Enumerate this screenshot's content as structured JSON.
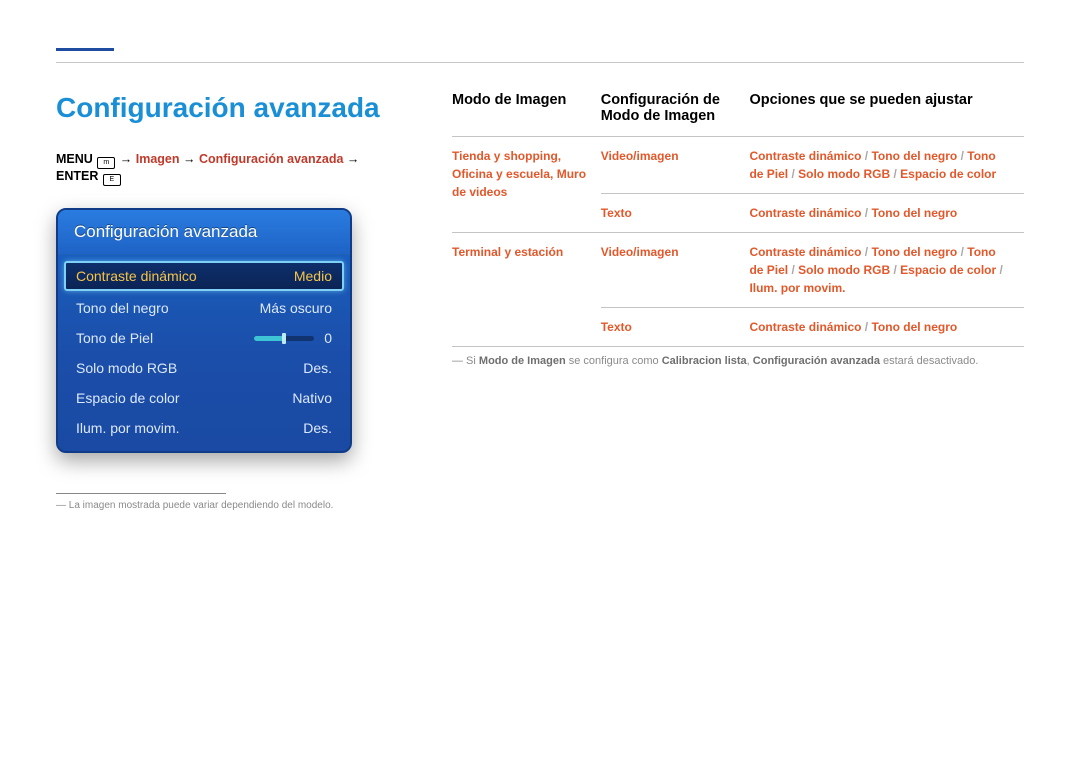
{
  "colors": {
    "accent_blue": "#1a8fd6",
    "red": "#e2582b",
    "panel_top": "#2a7ce0",
    "panel_bottom": "#1a4aa3",
    "selected_text": "#f6c445",
    "selected_border": "#7fd0f7",
    "grey_text": "#8a8a8a"
  },
  "page": {
    "title": "Configuración avanzada"
  },
  "breadcrumb": {
    "prefix": "MENU ",
    "parts": [
      {
        "text": "Imagen",
        "hl": true
      },
      {
        "text": "Configuración avanzada",
        "hl": true
      },
      {
        "text": "ENTER ",
        "hl": false,
        "icon": "E"
      }
    ],
    "arrow": " → ",
    "menu_icon": "m"
  },
  "menu_panel": {
    "header": "Configuración avanzada",
    "rows": [
      {
        "label": "Contraste dinámico",
        "value": "Medio",
        "selected": true
      },
      {
        "label": "Tono del negro",
        "value": "Más oscuro"
      },
      {
        "label": "Tono de Piel",
        "value": "0",
        "slider": {
          "fill_pct": 50
        }
      },
      {
        "label": "Solo modo RGB",
        "value": "Des."
      },
      {
        "label": "Espacio de color",
        "value": "Nativo"
      },
      {
        "label": "Ilum. por movim.",
        "value": "Des."
      }
    ]
  },
  "footnote": "La imagen mostrada puede variar dependiendo del modelo.",
  "table": {
    "col_widths": [
      "26%",
      "26%",
      "48%"
    ],
    "headers": [
      "Modo de Imagen",
      "Configuración de Modo de Imagen",
      "Opciones que se pueden ajustar"
    ],
    "rows": [
      {
        "mode": "Tienda y shopping, Oficina y escuela, Muro de videos",
        "mode_rowspan": 2,
        "config": "Video/imagen",
        "options": [
          "Contraste dinámico",
          "Tono del negro",
          "Tono de Piel",
          "Solo modo RGB",
          "Espacio de color"
        ]
      },
      {
        "config": "Texto",
        "options": [
          "Contraste dinámico",
          "Tono del negro"
        ]
      },
      {
        "mode": "Terminal y estación",
        "mode_rowspan": 2,
        "config": "Video/imagen",
        "options": [
          "Contraste dinámico",
          "Tono del negro",
          "Tono de Piel",
          "Solo modo RGB",
          "Espacio de color",
          "Ilum. por movim."
        ]
      },
      {
        "config": "Texto",
        "options": [
          "Contraste dinámico",
          "Tono del negro"
        ]
      }
    ],
    "note": {
      "prefix": "― Si ",
      "b1": "Modo de Imagen",
      "mid1": " se configura como ",
      "b2": "Calibracion lista",
      "mid2": ", ",
      "b3": "Configuración avanzada",
      "suffix": " estará desactivado."
    }
  }
}
